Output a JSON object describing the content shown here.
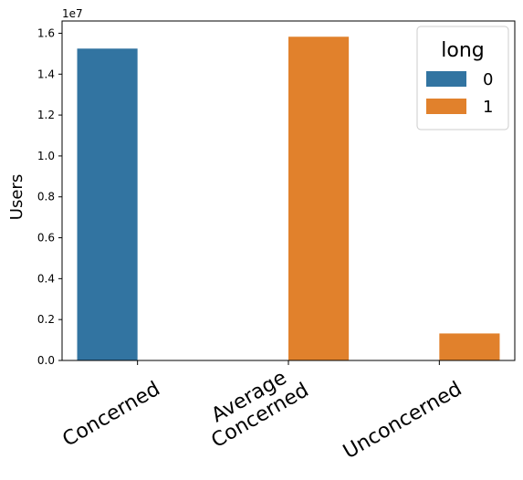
{
  "chart_data": {
    "type": "bar",
    "categories": [
      [
        "Concerned"
      ],
      [
        "Average",
        "Concerned"
      ],
      [
        "Unconcerned"
      ]
    ],
    "series": [
      {
        "name": "0",
        "color": "#3274a1",
        "values": [
          15250000,
          0,
          0
        ]
      },
      {
        "name": "1",
        "color": "#e1812c",
        "values": [
          0,
          15830000,
          1320000
        ]
      }
    ],
    "ylabel": "Users",
    "xlabel": "",
    "offset_label": "1e7",
    "yticks": [
      "0.0",
      "0.2",
      "0.4",
      "0.6",
      "0.8",
      "1.0",
      "1.2",
      "1.4",
      "1.6"
    ],
    "ytick_values": [
      0,
      2000000,
      4000000,
      6000000,
      8000000,
      10000000,
      12000000,
      14000000,
      16000000
    ],
    "ylim": [
      0,
      16600000
    ],
    "legend": {
      "title": "long",
      "placement": "top-right"
    },
    "grid": false
  }
}
